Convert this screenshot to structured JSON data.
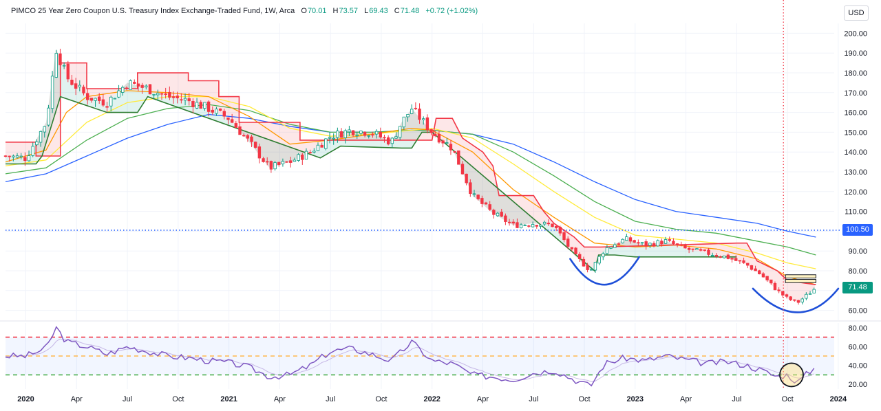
{
  "header": {
    "title": "PIMCO 25 Year Zero Coupon U.S. Treasury Index Exchange-Traded Fund, 1W, Arca",
    "open_label": "O",
    "open": "70.01",
    "high_label": "H",
    "high": "73.57",
    "low_label": "L",
    "low": "69.43",
    "close_label": "C",
    "close": "71.48",
    "change": "+0.72 (+1.02%)"
  },
  "currency_button": "USD",
  "price_tags": {
    "level": "100.50",
    "last": "71.48"
  },
  "colors": {
    "up": "#089981",
    "down": "#f23645",
    "sma_fast": "#ff9800",
    "sma_mid": "#ffeb3b",
    "sma_slow": "#4caf50",
    "sma_long": "#2962ff",
    "level_line": "#2962ff",
    "rsi": "#7e57c2",
    "arc": "#1e4fd8"
  },
  "chart_data": [
    {
      "type": "candlestick",
      "pane": "price",
      "ylim": [
        55,
        205
      ],
      "y_ticks": [
        "200.00",
        "190.00",
        "180.00",
        "170.00",
        "160.00",
        "150.00",
        "140.00",
        "130.00",
        "120.00",
        "110.00",
        "100.00",
        "90.00",
        "80.00",
        "70.00",
        "60.00"
      ],
      "y_tick_values": [
        200,
        190,
        180,
        170,
        160,
        150,
        140,
        130,
        120,
        110,
        100,
        90,
        80,
        70,
        60
      ],
      "x_ticks": [
        "2020",
        "Apr",
        "Jul",
        "Oct",
        "2021",
        "Apr",
        "Jul",
        "Oct",
        "2022",
        "Apr",
        "Jul",
        "Oct",
        "2023",
        "Apr",
        "Jul",
        "Oct",
        "2024"
      ],
      "x_tick_dates": [
        2020.0,
        2020.25,
        2020.5,
        2020.75,
        2021.0,
        2021.25,
        2021.5,
        2021.75,
        2022.0,
        2022.25,
        2022.5,
        2022.75,
        2023.0,
        2023.25,
        2023.5,
        2023.75,
        2024.0
      ],
      "x_range": [
        2019.9,
        2023.98
      ],
      "close_path": {
        "x": [
          2019.9,
          2020.0,
          2020.1,
          2020.15,
          2020.2,
          2020.3,
          2020.4,
          2020.5,
          2020.6,
          2020.7,
          2020.8,
          2020.9,
          2021.0,
          2021.1,
          2021.2,
          2021.3,
          2021.4,
          2021.5,
          2021.6,
          2021.7,
          2021.8,
          2021.85,
          2021.9,
          2022.0,
          2022.1,
          2022.2,
          2022.3,
          2022.4,
          2022.5,
          2022.6,
          2022.7,
          2022.78,
          2022.85,
          2022.95,
          2023.05,
          2023.15,
          2023.25,
          2023.35,
          2023.45,
          2023.55,
          2023.62,
          2023.7,
          2023.75,
          2023.8,
          2023.85,
          2023.89
        ],
        "y": [
          138,
          137,
          155,
          192,
          178,
          168,
          165,
          175,
          172,
          168,
          166,
          162,
          157,
          145,
          132,
          135,
          140,
          148,
          151,
          150,
          145,
          155,
          162,
          150,
          142,
          118,
          109,
          103,
          104,
          103,
          88,
          80,
          91,
          96,
          93,
          95,
          91,
          89,
          87,
          83,
          78,
          70,
          66,
          64,
          68,
          71.48
        ]
      },
      "sma_fast": {
        "name": "",
        "x": [
          2019.9,
          2020.1,
          2020.2,
          2020.3,
          2020.5,
          2020.7,
          2020.9,
          2021.1,
          2021.3,
          2021.5,
          2021.7,
          2021.9,
          2022.0,
          2022.2,
          2022.4,
          2022.6,
          2022.8,
          2023.0,
          2023.2,
          2023.4,
          2023.6,
          2023.75,
          2023.89
        ],
        "y": [
          135,
          141,
          160,
          168,
          171,
          170,
          168,
          158,
          144,
          146,
          149,
          152,
          151,
          140,
          121,
          107,
          94,
          92,
          93,
          91,
          86,
          77,
          73
        ]
      },
      "sma_mid": {
        "name": "",
        "x": [
          2019.9,
          2020.1,
          2020.3,
          2020.5,
          2020.7,
          2020.9,
          2021.1,
          2021.3,
          2021.5,
          2021.7,
          2021.9,
          2022.0,
          2022.2,
          2022.4,
          2022.6,
          2022.8,
          2023.0,
          2023.2,
          2023.4,
          2023.6,
          2023.75,
          2023.89
        ],
        "y": [
          133,
          136,
          155,
          165,
          168,
          168,
          163,
          152,
          148,
          149,
          151,
          152,
          147,
          134,
          120,
          107,
          98,
          96,
          94,
          89,
          84,
          81
        ]
      },
      "sma_slow": {
        "name": "",
        "x": [
          2019.9,
          2020.1,
          2020.3,
          2020.5,
          2020.7,
          2020.9,
          2021.1,
          2021.3,
          2021.5,
          2021.7,
          2021.9,
          2022.0,
          2022.2,
          2022.4,
          2022.6,
          2022.8,
          2023.0,
          2023.2,
          2023.4,
          2023.6,
          2023.75,
          2023.89
        ],
        "y": [
          129,
          132,
          146,
          157,
          162,
          164,
          161,
          154,
          150,
          150,
          151,
          151,
          149,
          140,
          128,
          115,
          105,
          101,
          99,
          95,
          92,
          88
        ]
      },
      "sma_long": {
        "name": "",
        "x": [
          2019.9,
          2020.1,
          2020.3,
          2020.5,
          2020.7,
          2020.9,
          2021.1,
          2021.3,
          2021.5,
          2021.7,
          2021.9,
          2022.0,
          2022.2,
          2022.4,
          2022.6,
          2022.8,
          2023.0,
          2023.2,
          2023.4,
          2023.6,
          2023.75,
          2023.89
        ],
        "y": [
          125,
          129,
          138,
          147,
          154,
          159,
          157,
          153,
          150,
          150,
          151,
          151,
          149,
          144,
          135,
          125,
          116,
          110,
          107,
          104,
          100,
          97
        ]
      },
      "stop_upper": {
        "x": [
          2019.9,
          2020.05,
          2020.05,
          2020.17,
          2020.17,
          2020.3,
          2020.3,
          2020.55,
          2020.55,
          2020.8,
          2020.8,
          2020.95,
          2020.95,
          2021.05,
          2021.05,
          2021.35,
          2021.35,
          2021.4,
          2022.0,
          2022.02,
          2022.1,
          2022.15,
          2022.25,
          2022.3,
          2022.33,
          2022.5,
          2022.55,
          2022.6,
          2022.7,
          2022.75,
          2022.83,
          2023.5,
          2023.55,
          2023.6,
          2023.7,
          2023.75,
          2023.82,
          2023.89
        ],
        "y": [
          145,
          145,
          138,
          138,
          185,
          185,
          172,
          172,
          180,
          180,
          176,
          176,
          168,
          168,
          155,
          155,
          146,
          146,
          146,
          157,
          157,
          147,
          140,
          133,
          118,
          118,
          110,
          104,
          97,
          92,
          92,
          94,
          94,
          85,
          80,
          75,
          74,
          73
        ]
      },
      "stop_lower": {
        "x": [
          2019.9,
          2020.05,
          2020.08,
          2020.08,
          2020.17,
          2020.17,
          2020.4,
          2020.4,
          2020.55,
          2020.6,
          2020.6,
          2021.45,
          2021.45,
          2021.55,
          2021.55,
          2021.85,
          2021.9,
          2021.95,
          2022.0,
          2022.8,
          2022.82,
          2022.9,
          2023.0,
          2023.5
        ],
        "y": [
          134,
          134,
          138,
          138,
          168,
          168,
          160,
          160,
          160,
          168,
          168,
          137,
          137,
          143,
          143,
          142,
          142,
          150,
          150,
          80,
          88,
          88,
          87,
          87
        ]
      },
      "reference_line": 100.5,
      "marker_dates": [
        2023.73
      ],
      "annotations": {
        "arcs": [
          {
            "x": [
              2022.68,
              2022.85,
              2023.02
            ],
            "y": [
              86,
              73,
              87
            ]
          },
          {
            "x": [
              2023.58,
              2023.81,
              2024.0
            ],
            "y": [
              71,
              59,
              71
            ]
          }
        ],
        "zone": {
          "x": [
            2023.74,
            2023.89
          ],
          "y": [
            74,
            78
          ]
        }
      }
    },
    {
      "type": "line",
      "pane": "oscillator",
      "ylim": [
        15,
        85
      ],
      "y_ticks": [
        "80.00",
        "60.00",
        "40.00",
        "20.00"
      ],
      "y_tick_values": [
        80,
        60,
        40,
        20
      ],
      "levels": {
        "upper": 70,
        "middle": 50,
        "lower": 30
      },
      "x": [
        2019.9,
        2020.0,
        2020.1,
        2020.15,
        2020.2,
        2020.3,
        2020.4,
        2020.5,
        2020.6,
        2020.7,
        2020.8,
        2020.9,
        2021.0,
        2021.1,
        2021.2,
        2021.3,
        2021.4,
        2021.5,
        2021.6,
        2021.7,
        2021.8,
        2021.85,
        2021.9,
        2022.0,
        2022.1,
        2022.2,
        2022.3,
        2022.4,
        2022.5,
        2022.6,
        2022.7,
        2022.78,
        2022.85,
        2022.95,
        2023.05,
        2023.15,
        2023.25,
        2023.35,
        2023.45,
        2023.55,
        2023.62,
        2023.7,
        2023.75,
        2023.8,
        2023.85,
        2023.89
      ],
      "y": [
        50,
        50,
        58,
        80,
        65,
        60,
        52,
        60,
        55,
        50,
        48,
        45,
        43,
        38,
        28,
        30,
        40,
        55,
        58,
        52,
        45,
        55,
        65,
        45,
        42,
        30,
        28,
        25,
        32,
        35,
        25,
        18,
        42,
        48,
        45,
        50,
        46,
        42,
        44,
        40,
        35,
        28,
        30,
        22,
        32,
        38
      ],
      "highlight": {
        "x": 2023.77,
        "y": 30
      }
    }
  ]
}
